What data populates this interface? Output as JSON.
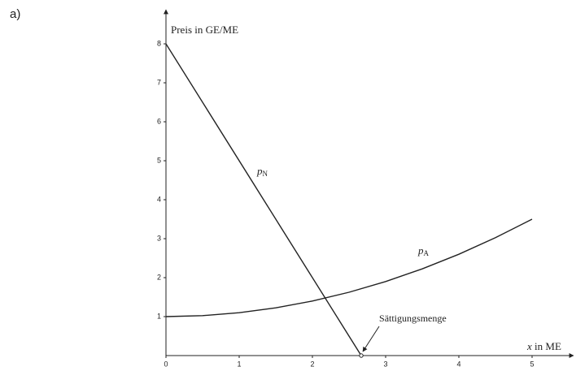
{
  "page_label": "a)",
  "chart_data": {
    "type": "line",
    "y_axis_label": "Preis in GE/ME",
    "x_axis_label": {
      "var": "x",
      "rest": "in ME"
    },
    "xlim": [
      0,
      5.5
    ],
    "ylim": [
      0,
      8.75
    ],
    "xticks": [
      0,
      1,
      2,
      3,
      4,
      5
    ],
    "yticks": [
      1,
      2,
      3,
      4,
      5,
      6,
      7,
      8
    ],
    "series": [
      {
        "name": {
          "text": "p",
          "sub": "N"
        },
        "color": "#222222",
        "x": [
          0,
          2.667
        ],
        "values": [
          8,
          0
        ]
      },
      {
        "name": {
          "text": "p",
          "sub": "A"
        },
        "color": "#222222",
        "x": [
          0,
          0.5,
          1,
          1.5,
          2,
          2.5,
          3,
          3.5,
          4,
          4.5,
          5
        ],
        "values": [
          1,
          1.025,
          1.1,
          1.225,
          1.4,
          1.625,
          1.9,
          2.225,
          2.6,
          3.025,
          3.5
        ]
      }
    ],
    "saturation": {
      "label": "Sättigungsmenge",
      "x": 2.667,
      "y": 0
    }
  }
}
